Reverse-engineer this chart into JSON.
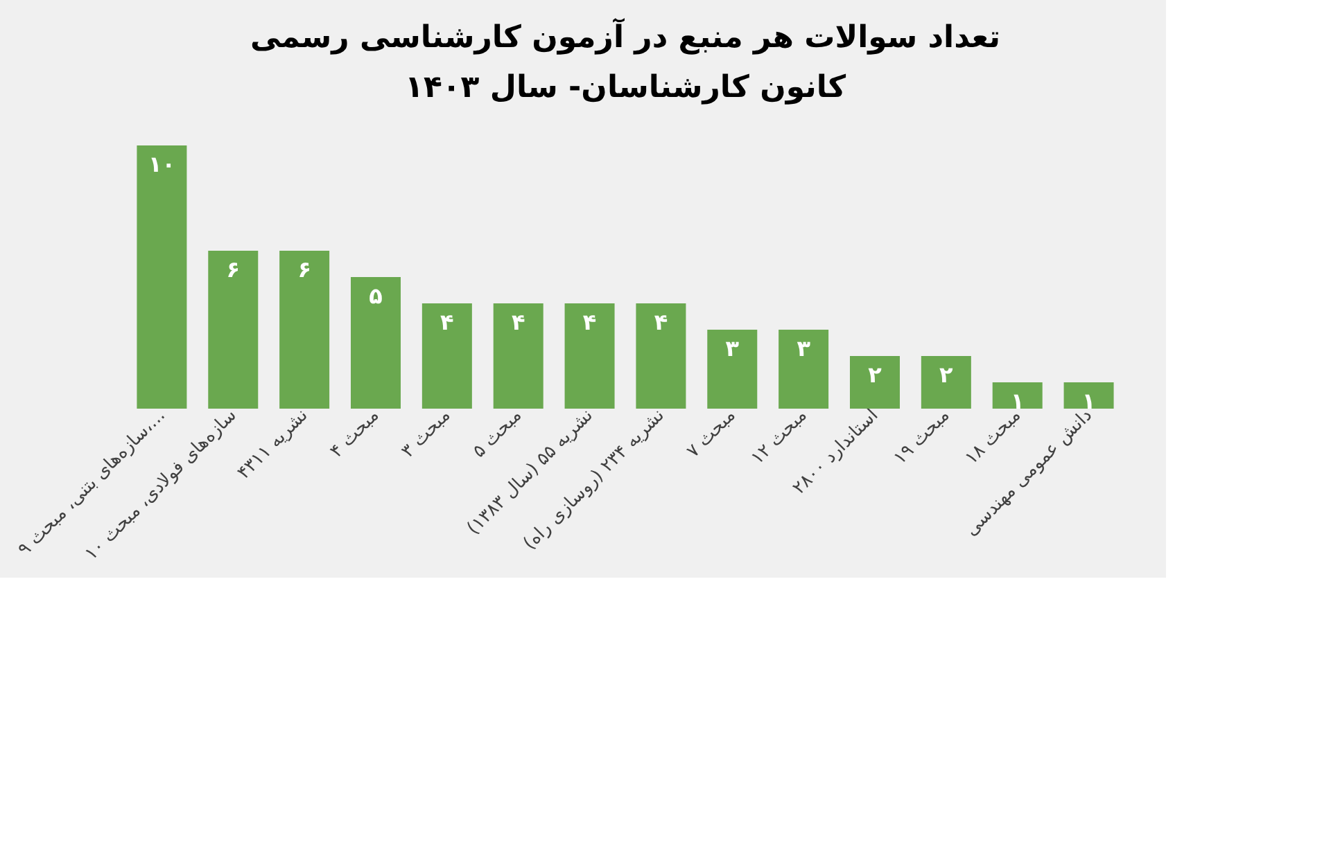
{
  "chart_data": {
    "type": "bar",
    "title": "تعداد سوالات هر منبع در آزمون کارشناسی رسمی",
    "subtitle": "کانون کارشناسان- سال ۱۴۰۳",
    "categories": [
      "سازه‌های بتنی، مبحث ۹،...",
      "سازه‌های فولادی، مبحث ۱۰",
      "نشریه ۴۳۱۱",
      "مبحث ۴",
      "مبحث ۳",
      "مبحث ۵",
      "نشریه ۵۵ (سال ۱۳۸۳)",
      "نشریه ۲۳۴ (روسازی راه)",
      "مبحث ۷",
      "مبحث ۱۲",
      "استاندارد ۲۸۰۰",
      "مبحث ۱۹",
      "مبحث ۱۸",
      "دانش عمومی مهندسی"
    ],
    "values": [
      10,
      6,
      6,
      5,
      4,
      4,
      4,
      4,
      3,
      3,
      2,
      2,
      1,
      1
    ],
    "value_labels": [
      "۱۰",
      "۶",
      "۶",
      "۵",
      "۴",
      "۴",
      "۴",
      "۴",
      "۳",
      "۳",
      "۲",
      "۲",
      "۱",
      "۱"
    ],
    "color": "#6aa84f",
    "grid": false,
    "tick_labels": "x"
  }
}
